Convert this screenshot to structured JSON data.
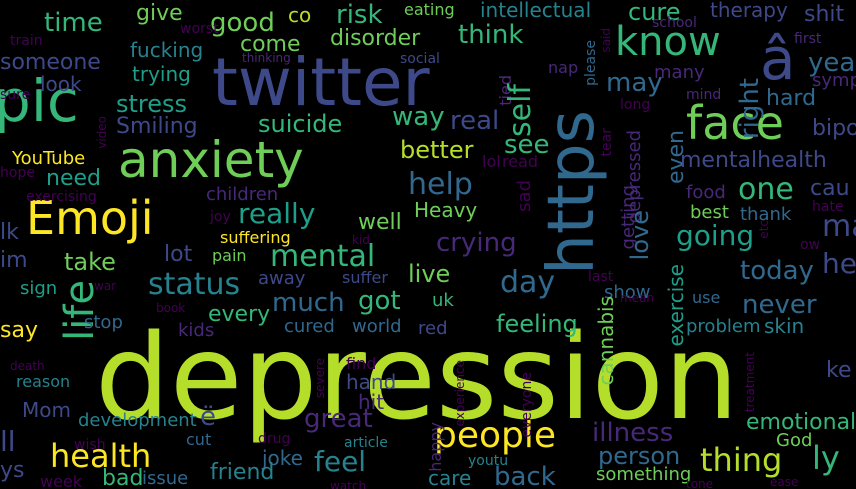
{
  "words": {
    "depression": "depression",
    "twitter": "twitter",
    "https": "https",
    "anxiety": "anxiety",
    "pic": "pic",
    "emoji": "Emoji",
    "face": "face",
    "know": "know",
    "people": "people",
    "health": "health",
    "thing": "thing",
    "help": "help",
    "mental": "mental",
    "status": "status",
    "life": "life",
    "day": "day",
    "one": "one",
    "really": "really",
    "going": "going",
    "today": "today",
    "never": "never",
    "much": "much",
    "got": "got",
    "time": "time",
    "someone": "someone",
    "good": "good",
    "risk": "risk",
    "give": "give",
    "co": "co",
    "eating": "eating",
    "intellectual": "intellectual",
    "cure": "cure",
    "therapy": "therapy",
    "shit": "shit",
    "think": "think",
    "disorder": "disorder",
    "come": "come",
    "fucking": "fucking",
    "trying": "trying",
    "stress": "stress",
    "smiling": "Smiling",
    "suicide": "suicide",
    "way": "way",
    "real": "real",
    "better": "better",
    "see": "see",
    "self": "self",
    "may": "may",
    "many": "many",
    "right": "right",
    "hard": "hard",
    "mentalhealth": "mentalhealth",
    "cau": "cau",
    "youtube": "YouTube",
    "need": "need",
    "heavy": "Heavy",
    "well": "well",
    "crying": "crying",
    "love": "love",
    "even": "even",
    "depressed": "depressed",
    "getting": "getting",
    "best": "best",
    "thank": "thank",
    "food": "food",
    "take": "take",
    "lot": "lot",
    "pain": "pain",
    "suffering": "suffering",
    "children": "children",
    "live": "live",
    "sad": "sad",
    "sign": "sign",
    "away": "away",
    "suffer": "suffer",
    "uk": "uk",
    "show": "show",
    "every": "every",
    "cured": "cured",
    "world": "world",
    "red": "red",
    "feeling": "feeling",
    "exercise": "exercise",
    "use": "use",
    "problem": "problem",
    "skin": "skin",
    "cannabis": "cannabis",
    "say": "say",
    "stop": "stop",
    "kids": "kids",
    "mom": "Mom",
    "reason": "reason",
    "development": "development",
    "great": "great",
    "hit": "hit",
    "hand": "hand",
    "find": "find",
    "illness": "illness",
    "emotional": "emotional",
    "drug": "drug",
    "cut": "cut",
    "joke": "joke",
    "friend": "friend",
    "feel": "feel",
    "back": "back",
    "person": "person",
    "something": "something",
    "god": "God",
    "care": "care",
    "bad": "bad",
    "issue": "issue",
    "week": "week",
    "wish": "wish",
    "article": "article",
    "youtu": "youtu",
    "happy": "happy",
    "everyone": "everyone",
    "experience": "experience",
    "severe": "severe",
    "death": "death",
    "treatment": "treatment",
    "look": "look",
    "worst": "worst",
    "train": "train",
    "thinking": "thinking",
    "social": "social",
    "please": "please",
    "tied": "tied",
    "nap": "nap",
    "said": "said",
    "school": "school",
    "first": "first",
    "mind": "mind",
    "symp": "symp",
    "yea": "yea",
    "bipo": "bipo",
    "long": "long",
    "tear": "tear",
    "lol": "lol",
    "read": "read",
    "video": "video",
    "hope": "hope",
    "exercising": "exercising",
    "joy": "joy",
    "kid": "kid",
    "hate": "hate",
    "etc": "etc",
    "ow": "ow",
    "war": "war",
    "book": "book",
    "last": "last",
    "mean": "mean",
    "ease": "ease",
    "tone": "tone",
    "watch": "watch",
    "sure": "sure",
    "a_circ": "â",
    "e_uml": "ë",
    "ly": "ly",
    "im": "im",
    "ma": "ma",
    "he": "he",
    "ke": "ke",
    "ys": "ys",
    "ll": "ll",
    "lk": "lk"
  },
  "palette": {
    "yellow": "#fde725",
    "lime": "#b5de2b",
    "green": "#6ece58",
    "teal": "#35b779",
    "aqua": "#1f9e89",
    "cyan": "#26828e",
    "blue": "#31688e",
    "indigo": "#3e4989",
    "purple": "#482878",
    "dark": "#440154"
  }
}
